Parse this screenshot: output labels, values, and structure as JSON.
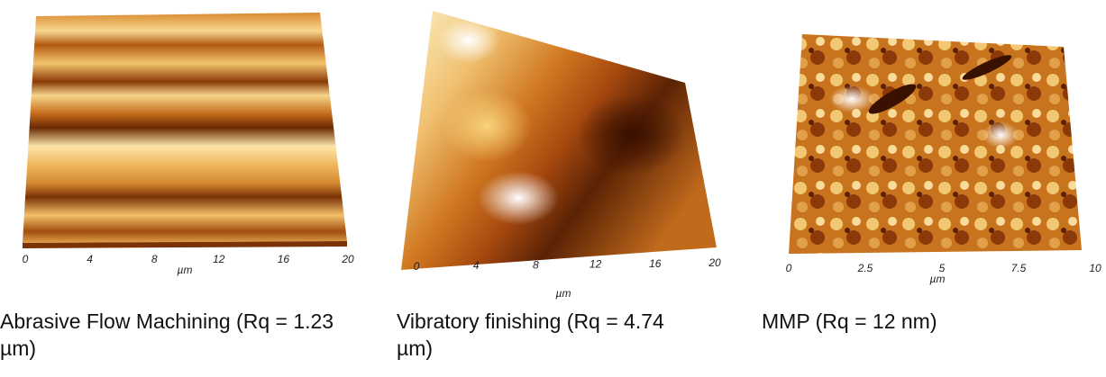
{
  "panels": [
    {
      "caption": "Abrasive Flow Machining (Rq = 1.23 µm)",
      "x_ticks": [
        "0",
        "4",
        "8",
        "12",
        "16",
        "20"
      ],
      "x_label": "µm"
    },
    {
      "caption": "Vibratory finishing (Rq = 4.74 µm)",
      "x_ticks": [
        "0",
        "4",
        "8",
        "12",
        "16",
        "20"
      ],
      "x_label": "µm"
    },
    {
      "caption": "MMP (Rq = 12 nm)",
      "x_ticks": [
        "0",
        "2.5",
        "5",
        "7.5",
        "10"
      ],
      "x_label": "µm"
    }
  ]
}
